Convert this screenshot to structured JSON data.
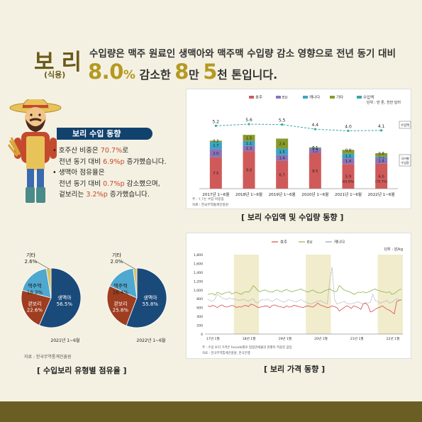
{
  "header": {
    "title": "보리",
    "subtitle": "(식용)",
    "line1": "수입량은 맥주 원료인 생맥아와 맥주맥 수입량 감소 영향으로 전년 동기 대비",
    "pct_value": "8.0",
    "pct_sign": "%",
    "text_after_pct": "감소한",
    "num1": "8",
    "unit1": "만",
    "num2": "5",
    "unit2": "천 톤",
    "tail": "입니다."
  },
  "summary": {
    "title": "보리 수입 동향",
    "b1_a": "호주산 비중은 ",
    "b1_hl": "70.7%",
    "b1_b": "로",
    "b1_c": "전년 동기 대비 ",
    "b1_hl2": "6.9%p",
    "b1_d": " 증가했습니다.",
    "b2_a": "생맥아 점유율은",
    "b2_b": "전년 동기 대비 ",
    "b2_hl": "0.7%p",
    "b2_c": " 감소했으며,",
    "b2_d": "겉보리는 ",
    "b2_hl2": "3.2%p",
    "b2_e": " 증가했습니다."
  },
  "chart_data": [
    {
      "type": "bar",
      "caption": "[ 보리 수입액 및 수입량 동향 ]",
      "unit_note": "단위 : 만 톤, 천만 달러",
      "note": "주 : '( )'는 수입 비중임",
      "source": "자료 : 한국무역통계진흥원",
      "legend": [
        "호주",
        "EU",
        "캐나다",
        "기타",
        "수입액"
      ],
      "categories": [
        "2017년 1~6월",
        "2018년 1~6월",
        "2019년 1~6월",
        "2020년 1~6월",
        "2021년 1~6월",
        "2022년 1~6월"
      ],
      "series": [
        {
          "name": "호주",
          "color": "#d05a5a",
          "values": [
            7.5,
            9.0,
            6.7,
            8.5,
            5.9,
            6.0
          ]
        },
        {
          "name": "EU",
          "color": "#8a74b8",
          "values": [
            2.0,
            1.3,
            1.4,
            1.2,
            1.4,
            1.4
          ]
        },
        {
          "name": "캐나다",
          "color": "#3aa6c4",
          "values": [
            1.7,
            1.1,
            1.5,
            0.1,
            1.1,
            0.3
          ]
        },
        {
          "name": "기타",
          "color": "#8a9a2a",
          "values": [
            0.3,
            1.5,
            2.4,
            0.1,
            0.9,
            0.8
          ]
        }
      ],
      "share_labels": [
        "",
        "",
        "",
        "",
        "(63.8%)",
        "(70.7%)"
      ],
      "line_series": {
        "name": "수입액",
        "color": "#3aa6a6",
        "values": [
          5.2,
          5.6,
          5.5,
          4.4,
          4.0,
          4.1
        ]
      },
      "side_labels": [
        "수입액",
        "국가별 수입량"
      ],
      "ylim": [
        0,
        17
      ]
    },
    {
      "type": "pie",
      "year_label": "2021년 1~6월",
      "slices": [
        {
          "name": "생맥아",
          "value": 56.5,
          "label": "56.5%",
          "color": "#1a4a7a"
        },
        {
          "name": "겉보리",
          "value": 22.6,
          "label": "22.6%",
          "color": "#9e3d20"
        },
        {
          "name": "맥주맥",
          "value": 18.3,
          "label": "18.3%",
          "color": "#4ea8d0"
        },
        {
          "name": "기타",
          "value": 2.6,
          "label": "2.6%",
          "color": "#d8c06a"
        }
      ],
      "source": "자료 : 한국무역통계진흥원",
      "caption": "[ 수입보리 유형별 점유율 ]"
    },
    {
      "type": "pie",
      "year_label": "2022년 1~6월",
      "slices": [
        {
          "name": "생맥아",
          "value": 55.8,
          "label": "55.8%",
          "color": "#1a4a7a"
        },
        {
          "name": "겉보리",
          "value": 25.8,
          "label": "25.8%",
          "color": "#9e3d20"
        },
        {
          "name": "맥주맥",
          "value": 16.4,
          "label": "16.4%",
          "color": "#4ea8d0"
        },
        {
          "name": "기타",
          "value": 2.0,
          "label": "2.0%",
          "color": "#d8c06a"
        }
      ]
    },
    {
      "type": "line",
      "caption": "[ 보리 가격 동향 ]",
      "unit_note": "단위 : 원/kg",
      "legend": [
        "호주",
        "EU",
        "캐나다"
      ],
      "x_ticks": [
        "17년 1월",
        "18년 1월",
        "19년 1월",
        "20년 1월",
        "21년 1월",
        "22년 1월"
      ],
      "y_ticks": [
        0,
        200,
        400,
        600,
        800,
        1000,
        1200,
        1400,
        1600,
        1800
      ],
      "ylim": [
        0,
        1800
      ],
      "note": "주 : 수입 보리 가격은 hscode별로 협정관세율의 현황이 적용된 값임",
      "source": "자료 : 한국무역통계진흥원, 한국은행",
      "series": [
        {
          "name": "호주",
          "color": "#d84a4a",
          "values": [
            640,
            620,
            650,
            630,
            600,
            640,
            660,
            620,
            610,
            630,
            650,
            640,
            600,
            620,
            610,
            640,
            650,
            620,
            680,
            660,
            640,
            600,
            610,
            620,
            640,
            630,
            600,
            650,
            660,
            640,
            620,
            610,
            600,
            640,
            610,
            620,
            650,
            640,
            620,
            610,
            600,
            630,
            640,
            620,
            610,
            650,
            700,
            660,
            640,
            620,
            600,
            610,
            640,
            620,
            600,
            520,
            560,
            600,
            640,
            620,
            580,
            640,
            620,
            600,
            560,
            680,
            700,
            650,
            500,
            520,
            560,
            590,
            610,
            640,
            600,
            560,
            540,
            500,
            460,
            740,
            760,
            780
          ]
        },
        {
          "name": "EU",
          "color": "#8ab64a",
          "values": [
            900,
            910,
            920,
            880,
            950,
            920,
            900,
            930,
            940,
            960,
            910,
            930,
            950,
            920,
            900,
            940,
            960,
            950,
            1000,
            1100,
            1050,
            980,
            960,
            990,
            1000,
            970,
            960,
            950,
            980,
            1000,
            970,
            960,
            990,
            1010,
            980,
            960,
            970,
            990,
            1000,
            1020,
            990,
            970,
            950,
            980,
            1000,
            960,
            940,
            930,
            950,
            980,
            1000,
            1020,
            990,
            960,
            970,
            1100,
            1050,
            1000,
            980,
            960,
            940,
            900,
            920,
            950,
            940,
            960,
            930,
            950,
            970,
            1000,
            1020,
            990,
            980,
            960,
            950,
            940,
            960,
            900,
            920,
            960,
            1000,
            1020
          ]
        },
        {
          "name": "캐나다",
          "color": "#9aa0aa",
          "values": [
            780,
            760,
            740,
            790,
            900,
            860,
            820,
            800,
            780,
            820,
            800,
            790,
            780,
            760,
            770,
            790,
            760,
            740,
            780,
            800,
            720,
            700,
            760,
            780,
            770,
            790,
            760,
            740,
            780,
            800,
            760,
            740,
            720,
            760,
            780,
            760,
            740,
            730,
            760,
            780,
            750,
            720,
            700,
            680,
            700,
            720,
            740,
            760,
            730,
            700,
            690,
            1200,
            1520,
            800,
            680,
            700,
            720,
            740,
            700,
            680,
            690,
            700,
            720,
            730,
            700,
            690,
            710,
            700,
            720,
            900,
            760,
            740,
            700,
            720,
            740,
            760,
            700,
            720,
            760,
            800,
            780,
            760
          ]
        }
      ]
    }
  ]
}
